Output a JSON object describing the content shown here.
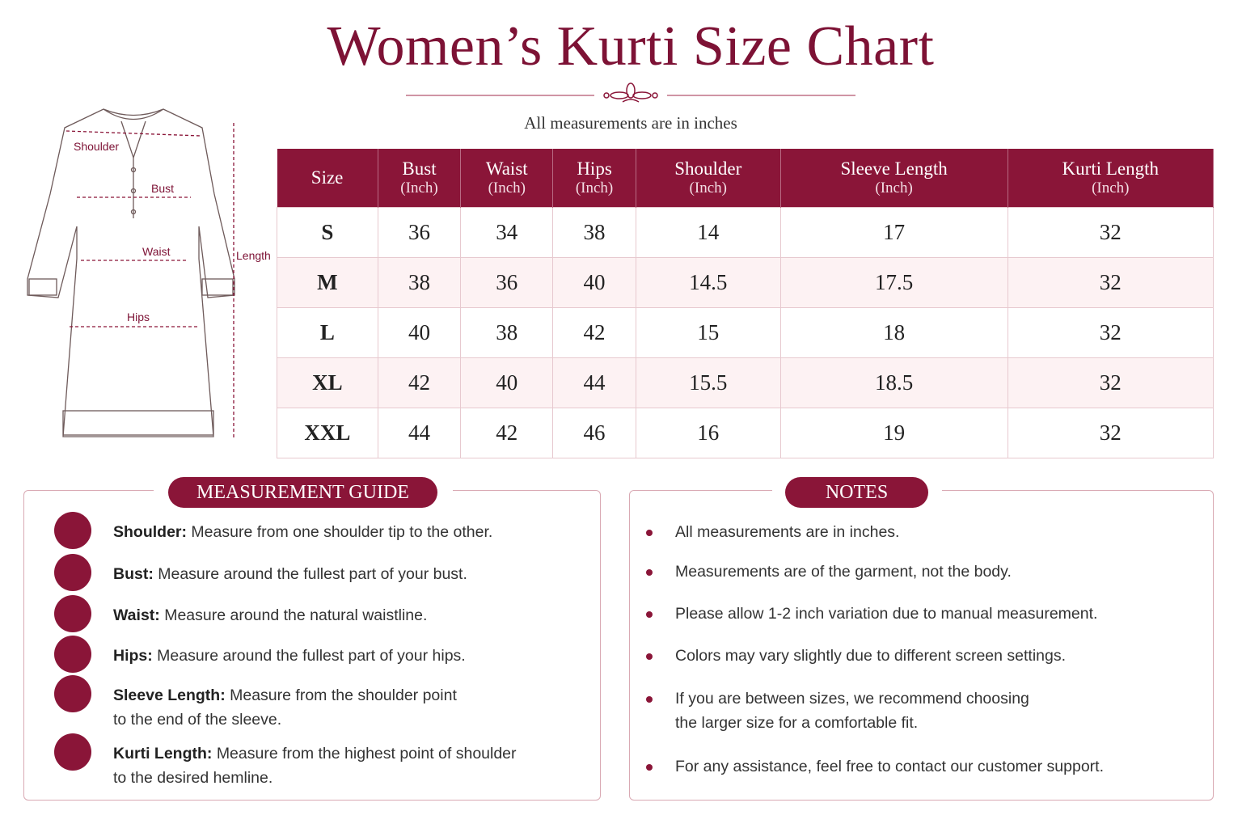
{
  "header": {
    "title": "Women’s Kurti Size Chart",
    "subtitle": "All measurements are in inches"
  },
  "diagram": {
    "labels": {
      "shoulder": "Shoulder",
      "bust": "Bust",
      "waist": "Waist",
      "hips": "Hips",
      "length": "Length"
    }
  },
  "table": {
    "columns": [
      {
        "name": "Size"
      },
      {
        "name": "Bust",
        "unit": "(Inch)"
      },
      {
        "name": "Waist",
        "unit": "(Inch)"
      },
      {
        "name": "Hips",
        "unit": "(Inch)"
      },
      {
        "name": "Shoulder",
        "unit": "(Inch)"
      },
      {
        "name": "Sleeve Length",
        "unit": "(Inch)"
      },
      {
        "name": "Kurti Length",
        "unit": "(Inch)"
      }
    ],
    "rows": [
      [
        "S",
        "36",
        "34",
        "38",
        "14",
        "17",
        "32"
      ],
      [
        "M",
        "38",
        "36",
        "40",
        "14.5",
        "17.5",
        "32"
      ],
      [
        "L",
        "40",
        "38",
        "42",
        "15",
        "18",
        "32"
      ],
      [
        "XL",
        "42",
        "40",
        "44",
        "15.5",
        "18.5",
        "32"
      ],
      [
        "XXL",
        "44",
        "42",
        "46",
        "16",
        "19",
        "32"
      ]
    ]
  },
  "guide": {
    "title": "MEASUREMENT GUIDE",
    "items": [
      {
        "label": "Shoulder:",
        "lines": [
          "Measure from one shoulder tip to the other."
        ]
      },
      {
        "label": "Bust:",
        "lines": [
          "Measure around the fullest part of your bust."
        ]
      },
      {
        "label": "Waist:",
        "lines": [
          "Measure around the natural waistline."
        ]
      },
      {
        "label": "Hips:",
        "lines": [
          "Measure around the fullest part of your hips."
        ]
      },
      {
        "label": "Sleeve Length:",
        "lines": [
          "Measure from the shoulder point",
          "to the end of the sleeve."
        ]
      },
      {
        "label": "Kurti Length:",
        "lines": [
          "Measure from the highest point of shoulder",
          "to the desired hemline."
        ]
      }
    ]
  },
  "notes": {
    "title": "NOTES",
    "items": [
      [
        "All measurements are in inches."
      ],
      [
        "Measurements are of the garment, not the body."
      ],
      [
        "Please allow 1-2 inch variation due to manual measurement."
      ],
      [
        "Colors may vary slightly due to different screen settings."
      ],
      [
        "If you are between sizes, we recommend choosing",
        "the larger size for a comfortable fit."
      ],
      [
        "For any assistance, feel free to contact our customer support."
      ]
    ]
  }
}
